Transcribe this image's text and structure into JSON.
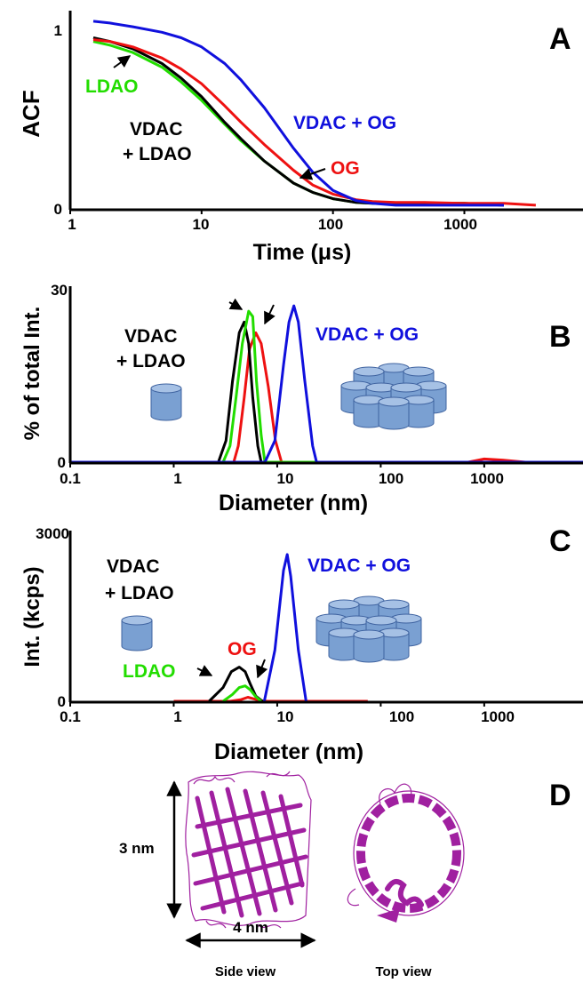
{
  "colors": {
    "black": "#000000",
    "green": "#22dd00",
    "red": "#ee1111",
    "blue": "#1010dd",
    "purple": "#a020a0",
    "cylinder_fill": "#7aa0d2",
    "cylinder_stroke": "#3f63a0"
  },
  "chart_data": [
    {
      "panel": "A",
      "type": "line",
      "ylabel": "ACF",
      "xlabel": "Time (μs)",
      "xscale": "log",
      "xlim": [
        1,
        8000
      ],
      "ylim": [
        0,
        1
      ],
      "xticks": [
        1,
        10,
        100,
        1000
      ],
      "xtick_labels": [
        "1",
        "10",
        "100",
        "1000"
      ],
      "yticks": [
        0,
        1
      ],
      "ytick_labels": [
        "0",
        "1"
      ],
      "grid": false,
      "series": [
        {
          "name": "",
          "color": "#22dd00",
          "x": [
            1.5,
            2,
            3,
            5,
            7,
            10,
            15,
            20,
            30,
            50,
            70,
            100,
            150,
            200,
            300,
            500,
            1000,
            2000
          ],
          "y": [
            0.91,
            0.89,
            0.85,
            0.77,
            0.69,
            0.59,
            0.46,
            0.37,
            0.26,
            0.14,
            0.09,
            0.055,
            0.035,
            0.03,
            0.03,
            0.03,
            0.03,
            0.02
          ]
        },
        {
          "name": "",
          "color": "#000000",
          "x": [
            1.5,
            2,
            3,
            5,
            7,
            10,
            15,
            20,
            30,
            50,
            70,
            100,
            150,
            200,
            300,
            500,
            1000,
            2000
          ],
          "y": [
            0.93,
            0.91,
            0.87,
            0.79,
            0.71,
            0.61,
            0.47,
            0.38,
            0.26,
            0.14,
            0.09,
            0.055,
            0.035,
            0.03,
            0.03,
            0.03,
            0.03,
            0.02
          ]
        },
        {
          "name": "",
          "color": "#ee1111",
          "x": [
            1.5,
            2,
            3,
            5,
            7,
            10,
            15,
            20,
            30,
            50,
            70,
            100,
            150,
            200,
            300,
            500,
            1000,
            2000,
            3500
          ],
          "y": [
            0.92,
            0.91,
            0.88,
            0.82,
            0.76,
            0.68,
            0.56,
            0.47,
            0.35,
            0.21,
            0.13,
            0.08,
            0.05,
            0.04,
            0.035,
            0.035,
            0.03,
            0.03,
            0.02
          ]
        },
        {
          "name": "",
          "color": "#1010dd",
          "x": [
            1.5,
            2,
            3,
            5,
            7,
            10,
            15,
            20,
            30,
            50,
            70,
            100,
            150,
            200,
            300,
            500,
            1000,
            2000
          ],
          "y": [
            1.02,
            1.01,
            0.99,
            0.96,
            0.93,
            0.88,
            0.79,
            0.7,
            0.55,
            0.33,
            0.2,
            0.1,
            0.045,
            0.03,
            0.02,
            0.02,
            0.02,
            0.02
          ]
        }
      ],
      "annotations": [
        "LDAO",
        "VDAC",
        "+ LDAO",
        "VDAC + OG",
        "OG"
      ],
      "panel_label": "A"
    },
    {
      "panel": "B",
      "type": "line",
      "ylabel": "% of total Int.",
      "xlabel": "Diameter (nm)",
      "xscale": "log",
      "xlim": [
        0.1,
        9000
      ],
      "ylim": [
        0,
        30
      ],
      "xticks": [
        0.1,
        1,
        10,
        100,
        1000
      ],
      "xtick_labels": [
        "0.1",
        "1",
        "10",
        "100",
        "1000"
      ],
      "yticks": [
        0,
        30
      ],
      "ytick_labels": [
        "0",
        "30"
      ],
      "grid": false,
      "series": [
        {
          "name": "",
          "color": "#ee1111",
          "x": [
            0.1,
            3.8,
            4.2,
            4.8,
            5.4,
            6.2,
            7.0,
            8.2,
            9.6,
            11,
            100,
            700,
            1000,
            1500,
            2500,
            9000
          ],
          "y": [
            0,
            0,
            3,
            12,
            21,
            24,
            22,
            14,
            4,
            0,
            0,
            0,
            0.6,
            0.4,
            0,
            0
          ]
        },
        {
          "name": "",
          "color": "#000000",
          "x": [
            0.1,
            2.7,
            3.2,
            3.7,
            4.3,
            4.8,
            5.3,
            5.8,
            6.5,
            7.0,
            9000
          ],
          "y": [
            0,
            0,
            4,
            15,
            24,
            26,
            22,
            12,
            3,
            0,
            0
          ]
        },
        {
          "name": "",
          "color": "#22dd00",
          "x": [
            0.1,
            3.0,
            3.5,
            4.0,
            4.6,
            5.3,
            5.8,
            6.3,
            7.0,
            7.6,
            9000
          ],
          "y": [
            0,
            0,
            3,
            12,
            22,
            28,
            27,
            15,
            5,
            0,
            0
          ]
        },
        {
          "name": "",
          "color": "#1010dd",
          "x": [
            0.1,
            7.6,
            9.5,
            11.5,
            13.0,
            14.5,
            16.0,
            18.5,
            22.0,
            24.0,
            9000
          ],
          "y": [
            0,
            0,
            4,
            18,
            26,
            29,
            26,
            15,
            3,
            0,
            0
          ]
        }
      ],
      "annotations": [
        "VDAC",
        "+ LDAO",
        "VDAC + OG"
      ],
      "panel_label": "B"
    },
    {
      "panel": "C",
      "type": "line",
      "ylabel": "Int. (kcps)",
      "xlabel": "Diameter (nm)",
      "xscale": "log",
      "xlim": [
        0.1,
        9000
      ],
      "ylim": [
        0,
        3000
      ],
      "xticks": [
        0.1,
        1,
        10,
        100,
        1000
      ],
      "xtick_labels": [
        "0.1",
        "1",
        "10",
        "100",
        "1000"
      ],
      "yticks": [
        0,
        3000
      ],
      "ytick_labels": [
        "0",
        "3000"
      ],
      "grid": false,
      "series": [
        {
          "name": "",
          "color": "#ee1111",
          "x": [
            1.0,
            3.5,
            4.5,
            5.2,
            6.0,
            7.0,
            8.0,
            75
          ],
          "y": [
            0,
            0,
            30,
            70,
            40,
            10,
            0,
            0
          ]
        },
        {
          "name": "",
          "color": "#000000",
          "x": [
            2.2,
            3.0,
            3.6,
            4.3,
            4.9,
            5.5,
            6.2,
            7.2
          ],
          "y": [
            0,
            240,
            520,
            600,
            520,
            300,
            90,
            0
          ]
        },
        {
          "name": "",
          "color": "#22dd00",
          "x": [
            3.0,
            3.7,
            4.3,
            4.9,
            5.5,
            6.2,
            7.0
          ],
          "y": [
            0,
            120,
            240,
            270,
            200,
            80,
            0
          ]
        },
        {
          "name": "",
          "color": "#1010dd",
          "x": [
            7.5,
            9.5,
            11.5,
            12.5,
            13.5,
            16.0,
            19.0
          ],
          "y": [
            0,
            900,
            2300,
            2580,
            2200,
            900,
            0
          ]
        }
      ],
      "annotations": [
        "VDAC",
        "+ LDAO",
        "VDAC + OG",
        "OG",
        "LDAO"
      ],
      "panel_label": "C"
    }
  ],
  "panel_d": {
    "panel_label": "D",
    "height_label": "3 nm",
    "width_label": "4 nm",
    "side_caption": "Side view",
    "top_caption": "Top view"
  }
}
